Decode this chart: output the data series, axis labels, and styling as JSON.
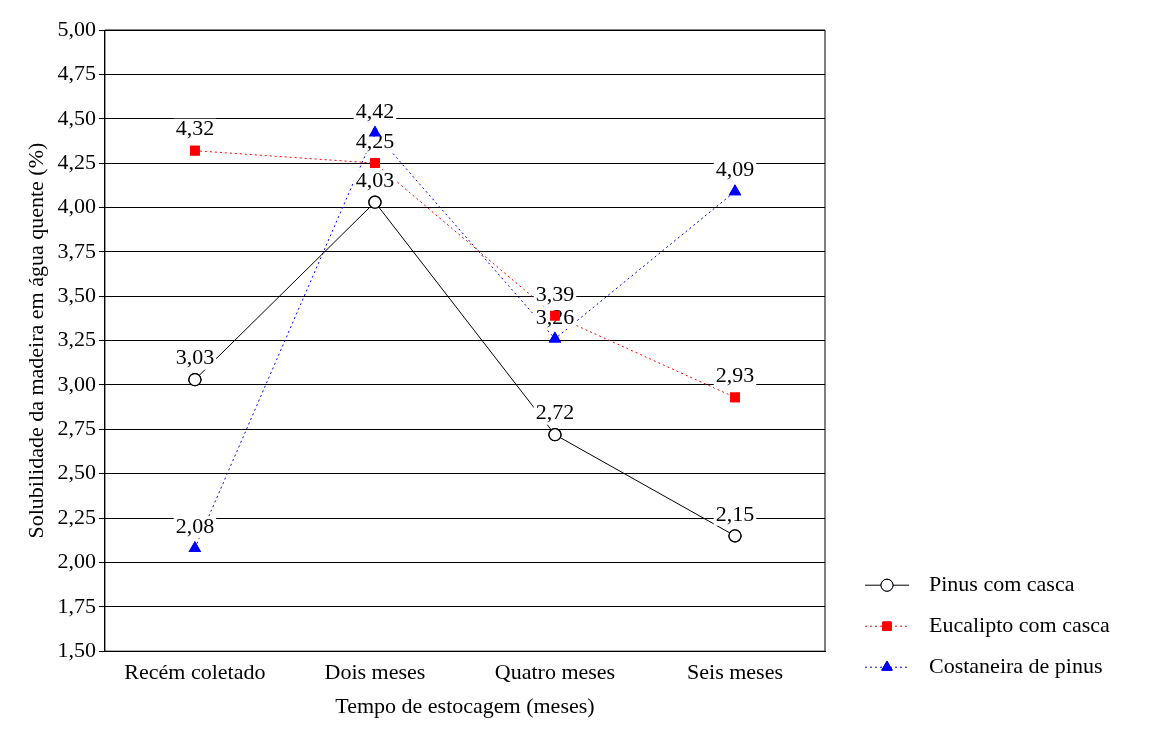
{
  "chart_data": {
    "type": "line",
    "xlabel": "Tempo de estocagem (meses)",
    "ylabel": "Solubilidade da madeira em água quente (%)",
    "categories": [
      "Recém coletado",
      "Dois meses",
      "Quatro meses",
      "Seis meses"
    ],
    "series": [
      {
        "name": "Pinus com casca",
        "color": "#000000",
        "marker": "circle",
        "line_style": "solid",
        "values": [
          3.03,
          4.03,
          2.72,
          2.15
        ],
        "value_labels": [
          "3,03",
          "4,03",
          "2,72",
          "2,15"
        ]
      },
      {
        "name": "Eucalipto com casca",
        "color": "#ff0000",
        "marker": "square",
        "line_style": "dotted",
        "values": [
          4.32,
          4.25,
          3.39,
          2.93
        ],
        "value_labels": [
          "4,32",
          "4,25",
          "3,39",
          "2,93"
        ]
      },
      {
        "name": "Costaneira de pinus",
        "color": "#0000ff",
        "marker": "triangle",
        "line_style": "dotted",
        "values": [
          2.08,
          4.42,
          3.26,
          4.09
        ],
        "value_labels": [
          "2,08",
          "4,42",
          "3,26",
          "4,09"
        ]
      }
    ],
    "ylim": [
      1.5,
      5
    ],
    "yticks": [
      {
        "value": 1.5,
        "label": "1,50"
      },
      {
        "value": 1.75,
        "label": "1,75"
      },
      {
        "value": 2,
        "label": "2,00"
      },
      {
        "value": 2.25,
        "label": "2,25"
      },
      {
        "value": 2.5,
        "label": "2,50"
      },
      {
        "value": 2.75,
        "label": "2,75"
      },
      {
        "value": 3,
        "label": "3,00"
      },
      {
        "value": 3.25,
        "label": "3,25"
      },
      {
        "value": 3.5,
        "label": "3,50"
      },
      {
        "value": 3.75,
        "label": "3,75"
      },
      {
        "value": 4,
        "label": "4,00"
      },
      {
        "value": 4.25,
        "label": "4,25"
      },
      {
        "value": 4.5,
        "label": "4,50"
      },
      {
        "value": 4.75,
        "label": "4,75"
      },
      {
        "value": 5,
        "label": "5,00"
      }
    ],
    "grid": "y",
    "legend": "right"
  }
}
